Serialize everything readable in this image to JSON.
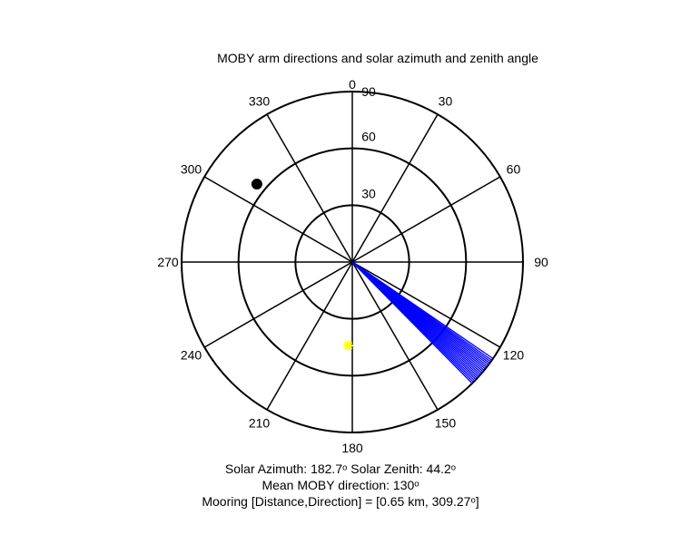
{
  "chart_data": {
    "type": "polar",
    "title": "MOBY arm directions and solar azimuth and zenith angle",
    "radial_ticks": [
      "30",
      "60",
      "90"
    ],
    "radial_values": [
      30,
      60,
      90
    ],
    "radial_max": 90,
    "angle_ticks": [
      {
        "angle": 0,
        "label": "0"
      },
      {
        "angle": 30,
        "label": "30"
      },
      {
        "angle": 60,
        "label": "60"
      },
      {
        "angle": 90,
        "label": "90"
      },
      {
        "angle": 120,
        "label": "120"
      },
      {
        "angle": 150,
        "label": "150"
      },
      {
        "angle": 180,
        "label": "180"
      },
      {
        "angle": 210,
        "label": "210"
      },
      {
        "angle": 240,
        "label": "240"
      },
      {
        "angle": 270,
        "label": "270"
      },
      {
        "angle": 300,
        "label": "300"
      },
      {
        "angle": 330,
        "label": "330"
      }
    ],
    "arm_directions": {
      "color": "#0000ff",
      "radius": 90,
      "azimuths_deg": [
        124.5,
        125.2,
        125.8,
        126.4,
        127.0,
        127.6,
        128.2,
        128.8,
        129.4,
        130.0,
        130.6,
        131.2,
        131.8,
        132.4,
        133.0,
        133.6,
        134.2,
        134.8,
        135.4
      ]
    },
    "sun": {
      "azimuth": 182.7,
      "zenith": 44.2,
      "color": "#ffff00",
      "marker": "asterisk"
    },
    "mooring_marker": {
      "azimuth": 309.27,
      "radius": 65,
      "color": "#000000",
      "marker": "dot"
    }
  },
  "caption": {
    "line1": "Solar Azimuth: 182.7ᵒ   Solar Zenith: 44.2ᵒ",
    "line2": "Mean MOBY direction: 130ᵒ",
    "line3": "Mooring [Distance,Direction] = [0.65 km, 309.27ᵒ]"
  }
}
